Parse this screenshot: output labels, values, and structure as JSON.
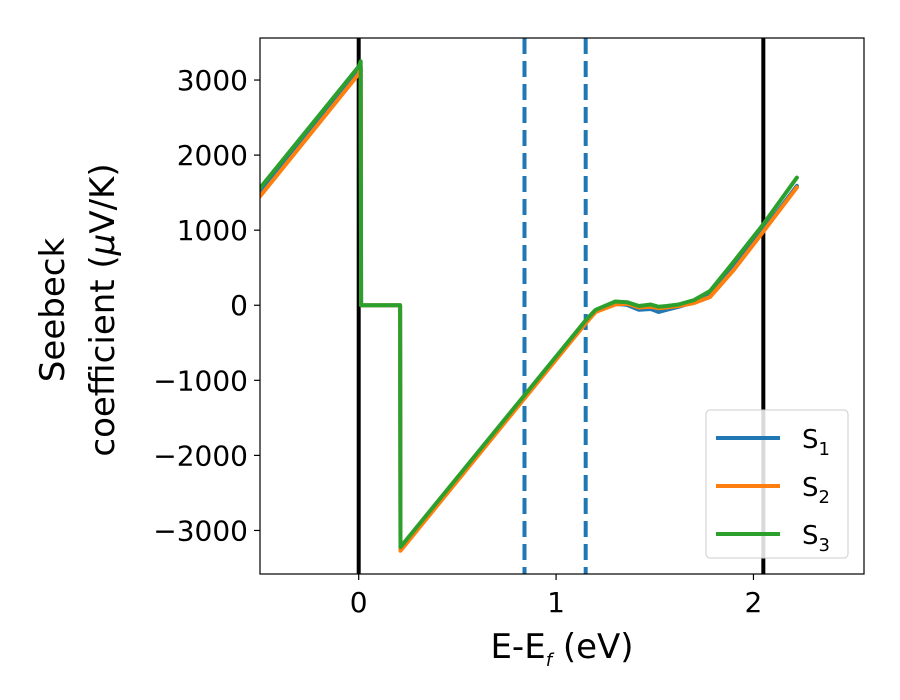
{
  "chart_data": {
    "type": "line",
    "title": "",
    "xlabel_main": "E-E",
    "xlabel_sub": "f",
    "xlabel_unit": " (eV)",
    "ylabel_line1": "Seebeck",
    "ylabel_line2_prefix": "coefficient  (",
    "ylabel_mu": "μ",
    "ylabel_line2_suffix": "V/K)",
    "xlim": [
      -0.5,
      2.56
    ],
    "ylim": [
      -3580,
      3560
    ],
    "xticks": [
      0,
      1,
      2
    ],
    "xtick_labels": [
      "0",
      "1",
      "2"
    ],
    "yticks": [
      3000,
      2000,
      1000,
      0,
      -1000,
      -2000,
      -3000
    ],
    "ytick_labels": [
      "3000",
      "2000",
      "1000",
      "0",
      "−1000",
      "−2000",
      "−3000"
    ],
    "grid": false,
    "legend_placement": "lower-right",
    "vlines": [
      {
        "x": 0.0,
        "style": "solid",
        "color": "#000000"
      },
      {
        "x": 2.05,
        "style": "solid",
        "color": "#000000"
      },
      {
        "x": 0.84,
        "style": "dashed",
        "color": "#1f77b4"
      },
      {
        "x": 1.15,
        "style": "dashed",
        "color": "#1f77b4"
      }
    ],
    "series": [
      {
        "name": "S",
        "sub": "1",
        "color": "#1f77b4",
        "x": [
          -0.5,
          0.0,
          0.01,
          0.012,
          0.21,
          0.212,
          1.15,
          1.2,
          1.3,
          1.36,
          1.42,
          1.48,
          1.52,
          1.56,
          1.62,
          1.7,
          1.78,
          1.9,
          2.05,
          2.22
        ],
        "y": [
          1480,
          3100,
          3180,
          0,
          0,
          -3250,
          -220,
          -80,
          20,
          5,
          -60,
          -50,
          -90,
          -60,
          -20,
          40,
          130,
          500,
          1000,
          1590
        ]
      },
      {
        "name": "S",
        "sub": "2",
        "color": "#ff7f0e",
        "x": [
          -0.5,
          0.0,
          0.01,
          0.012,
          0.21,
          0.212,
          1.15,
          1.2,
          1.3,
          1.36,
          1.42,
          1.48,
          1.52,
          1.56,
          1.62,
          1.7,
          1.78,
          1.9,
          2.05,
          2.22
        ],
        "y": [
          1450,
          3080,
          3160,
          0,
          0,
          -3270,
          -240,
          -90,
          10,
          20,
          -30,
          -20,
          -40,
          -30,
          -10,
          30,
          110,
          470,
          980,
          1570
        ]
      },
      {
        "name": "S",
        "sub": "3",
        "color": "#2ca02c",
        "x": [
          -0.5,
          0.0,
          0.01,
          0.012,
          0.21,
          0.212,
          1.15,
          1.2,
          1.3,
          1.36,
          1.42,
          1.48,
          1.52,
          1.56,
          1.62,
          1.7,
          1.78,
          1.9,
          2.05,
          2.22
        ],
        "y": [
          1560,
          3180,
          3250,
          0,
          0,
          -3220,
          -200,
          -60,
          50,
          40,
          -10,
          10,
          -20,
          -10,
          10,
          70,
          190,
          580,
          1080,
          1700
        ]
      }
    ]
  }
}
